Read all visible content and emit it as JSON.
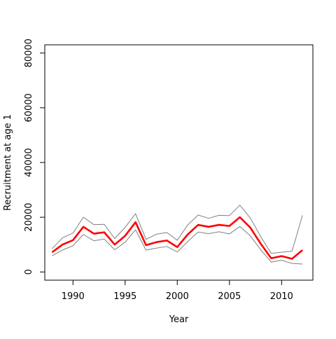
{
  "chart_data": {
    "type": "line",
    "title": "",
    "xlabel": "Year",
    "ylabel": "Recruitment at age 1",
    "xlim": [
      1987.3,
      2013.0
    ],
    "ylim": [
      -3000,
      83000
    ],
    "x_ticks": [
      1990,
      1995,
      2000,
      2005,
      2010
    ],
    "y_ticks": [
      0,
      20000,
      40000,
      60000,
      80000
    ],
    "grid": false,
    "legend": "none",
    "x": [
      1988,
      1989,
      1990,
      1991,
      1992,
      1993,
      1994,
      1995,
      1996,
      1997,
      1998,
      1999,
      2000,
      2001,
      2002,
      2003,
      2004,
      2005,
      2006,
      2007,
      2008,
      2009,
      2010,
      2011,
      2012
    ],
    "series": [
      {
        "role": "estimate",
        "color": "#ff0000",
        "values": [
          7200,
          10000,
          11600,
          16500,
          14000,
          14500,
          10000,
          13200,
          18200,
          9800,
          10900,
          11500,
          9100,
          13700,
          17200,
          16500,
          17200,
          16800,
          20000,
          16200,
          10300,
          5000,
          5800,
          4800,
          8000
        ]
      },
      {
        "role": "upper",
        "color": "#808080",
        "values": [
          8500,
          12500,
          14200,
          20000,
          17300,
          17400,
          12200,
          16300,
          21300,
          11900,
          13800,
          14400,
          11600,
          17200,
          20800,
          19600,
          20700,
          20600,
          24400,
          19700,
          12900,
          6800,
          7200,
          7600,
          20700
        ]
      },
      {
        "role": "lower",
        "color": "#808080",
        "values": [
          5900,
          8000,
          9600,
          13700,
          11400,
          12000,
          8100,
          10900,
          15400,
          8000,
          8700,
          9300,
          7300,
          11100,
          14600,
          14000,
          14700,
          13900,
          16600,
          13200,
          8100,
          3600,
          4300,
          3100,
          2900
        ]
      }
    ]
  }
}
